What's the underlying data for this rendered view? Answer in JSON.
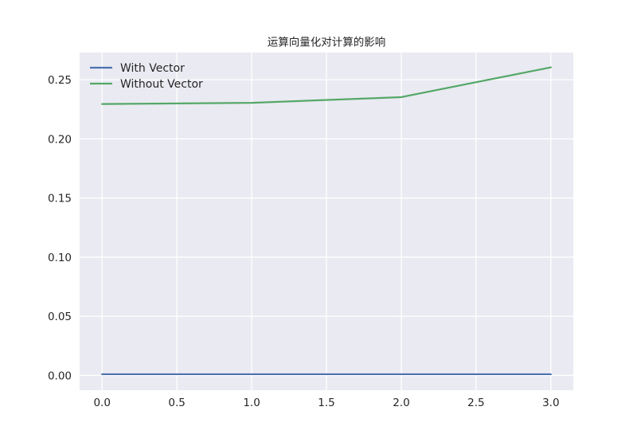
{
  "chart_data": {
    "type": "line",
    "title": "运算向量化对计算的影响",
    "xlabel": "",
    "ylabel": "",
    "x": [
      0,
      1,
      2,
      3
    ],
    "series": [
      {
        "name": "With Vector",
        "color": "#4c72b0",
        "values": [
          0.001,
          0.001,
          0.001,
          0.001
        ]
      },
      {
        "name": "Without Vector",
        "color": "#55a868",
        "values": [
          0.2295,
          0.2305,
          0.2353,
          0.2605
        ]
      }
    ],
    "xlim": [
      -0.15,
      3.15
    ],
    "ylim": [
      -0.0125,
      0.273
    ],
    "xticks": [
      0.0,
      0.5,
      1.0,
      1.5,
      2.0,
      2.5,
      3.0
    ],
    "xtick_labels": [
      "0.0",
      "0.5",
      "1.0",
      "1.5",
      "2.0",
      "2.5",
      "3.0"
    ],
    "yticks": [
      0.0,
      0.05,
      0.1,
      0.15,
      0.2,
      0.25
    ],
    "ytick_labels": [
      "0.00",
      "0.05",
      "0.10",
      "0.15",
      "0.20",
      "0.25"
    ],
    "grid": true,
    "legend_position": "top-left",
    "background_color": "#eaeaf2",
    "grid_color": "#ffffff"
  }
}
